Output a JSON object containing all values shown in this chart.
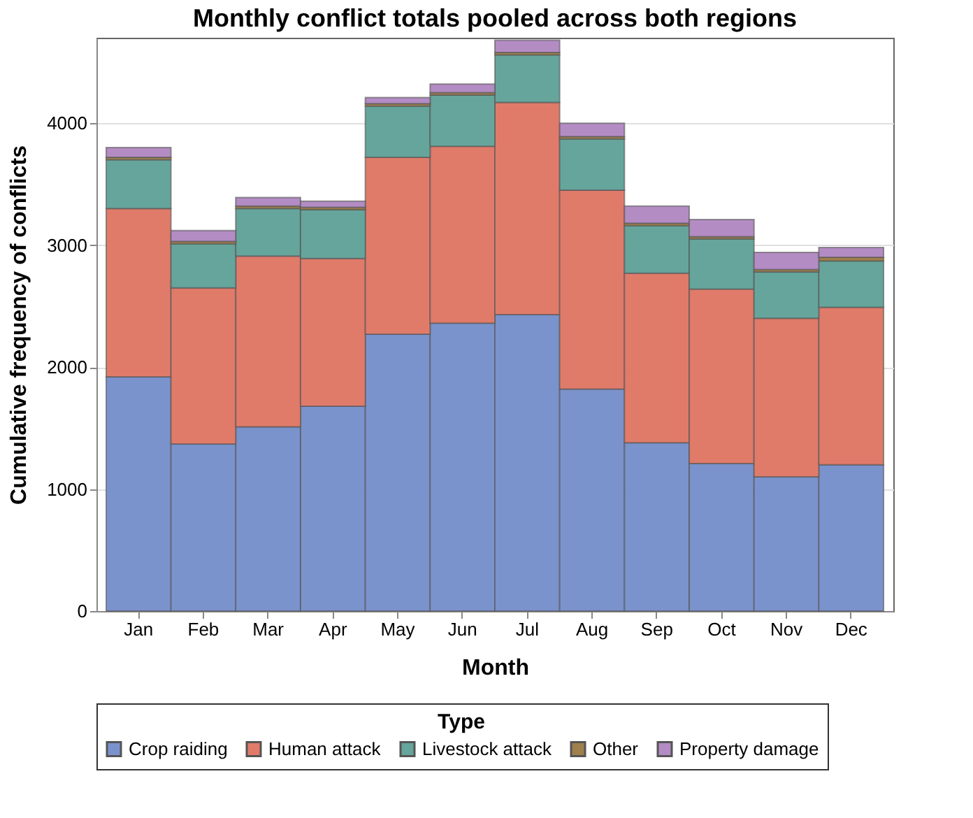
{
  "chart_data": {
    "type": "bar",
    "stacked": true,
    "title": "Monthly conflict totals pooled across both regions",
    "xlabel": "Month",
    "ylabel": "Cumulative frequency of conflicts",
    "legend_title": "Type",
    "legend": "bottom",
    "grid": "y",
    "categories": [
      "Jan",
      "Feb",
      "Mar",
      "Apr",
      "May",
      "Jun",
      "Jul",
      "Aug",
      "Sep",
      "Oct",
      "Nov",
      "Dec"
    ],
    "ylim": [
      0,
      4700
    ],
    "yticks": [
      0,
      1000,
      2000,
      3000,
      4000
    ],
    "series": [
      {
        "name": "Crop raiding",
        "color": "#7b93cc",
        "values": [
          1920,
          1370,
          1510,
          1680,
          2270,
          2360,
          2430,
          1820,
          1380,
          1210,
          1100,
          1200
        ]
      },
      {
        "name": "Human attack",
        "color": "#e07b6a",
        "values": [
          1380,
          1280,
          1400,
          1210,
          1450,
          1450,
          1740,
          1630,
          1390,
          1430,
          1300,
          1290
        ]
      },
      {
        "name": "Livestock attack",
        "color": "#66a59c",
        "values": [
          400,
          360,
          390,
          400,
          420,
          420,
          390,
          420,
          390,
          410,
          380,
          380
        ]
      },
      {
        "name": "Other",
        "color": "#a0804a",
        "values": [
          20,
          20,
          20,
          20,
          20,
          20,
          20,
          20,
          20,
          20,
          20,
          30
        ]
      },
      {
        "name": "Property damage",
        "color": "#b48cc4",
        "values": [
          80,
          90,
          70,
          50,
          50,
          70,
          100,
          110,
          140,
          140,
          140,
          80
        ]
      }
    ]
  }
}
